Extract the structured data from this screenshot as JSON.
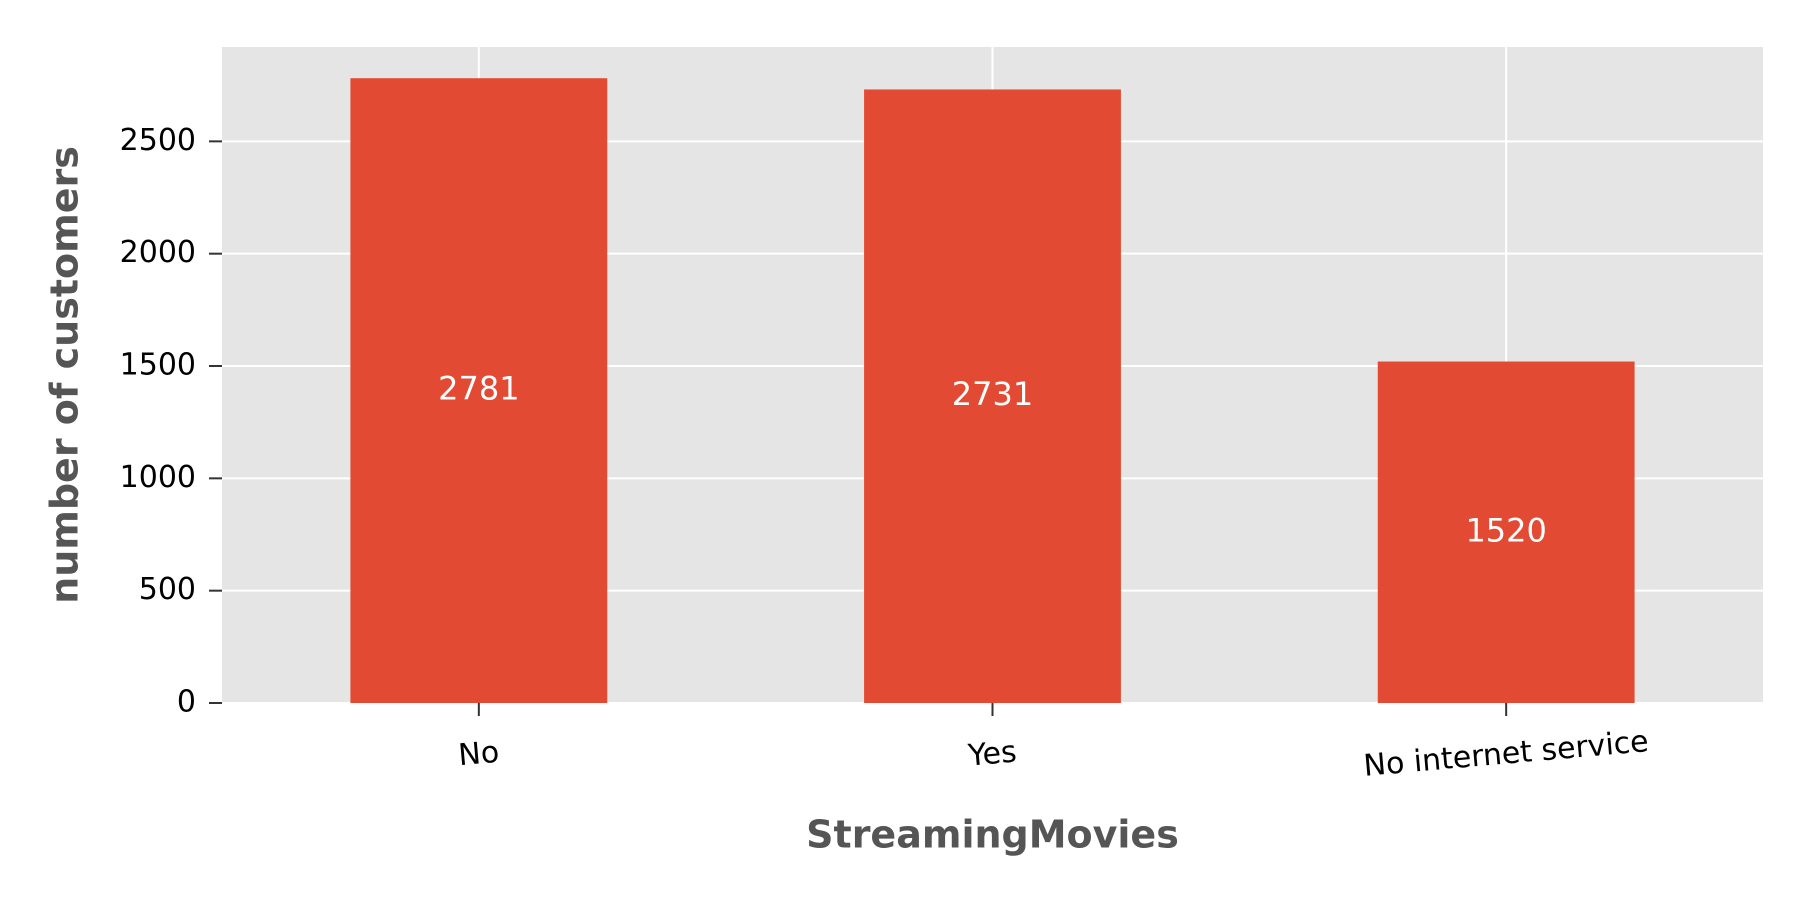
{
  "chart_data": {
    "type": "bar",
    "categories": [
      "No",
      "Yes",
      "No internet service"
    ],
    "values": [
      2781,
      2731,
      1520
    ],
    "data_labels": [
      "2781",
      "2731",
      "1520"
    ],
    "title": "",
    "xlabel": "StreamingMovies",
    "ylabel": "number of customers",
    "ylim": [
      0,
      2920
    ],
    "yticks": [
      0,
      500,
      1000,
      1500,
      2000,
      2500
    ],
    "ytick_labels": [
      "0",
      "500",
      "1000",
      "1500",
      "2000",
      "2500"
    ],
    "grid": true,
    "legend": "none",
    "colors": {
      "bar": "#E24A33",
      "plot_background": "#E5E5E5",
      "grid": "#FFFFFF",
      "axis_title": "#555555",
      "data_label": "#FFFFFF"
    }
  }
}
